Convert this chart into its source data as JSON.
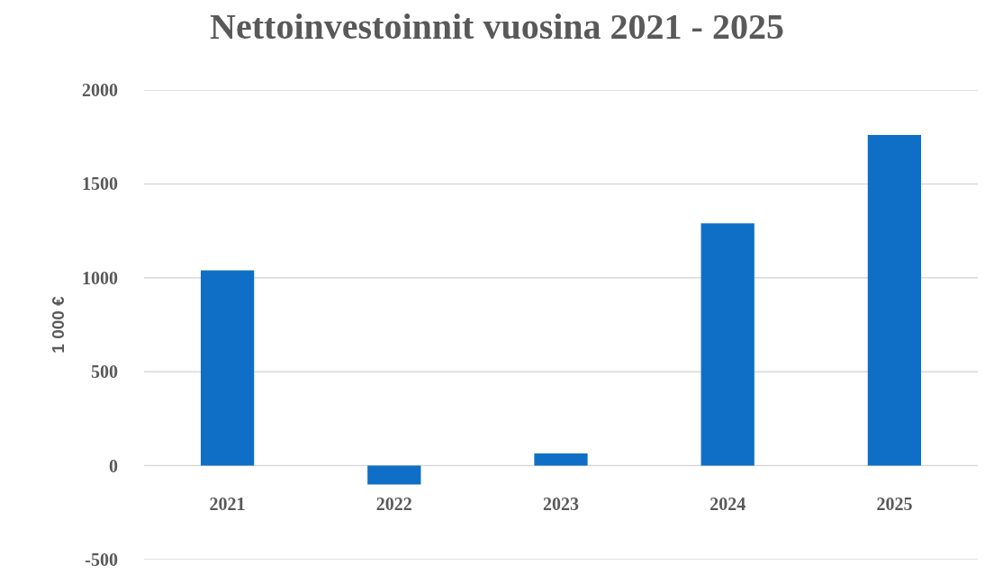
{
  "chart_data": {
    "type": "bar",
    "title": "Nettoinvestoinnit vuosina 2021 - 2025",
    "ylabel": "1 000 €",
    "categories": [
      "2021",
      "2022",
      "2023",
      "2024",
      "2025"
    ],
    "values": [
      1040,
      -100,
      65,
      1290,
      1760
    ],
    "color": "#0f6fc6",
    "ylim": [
      -500,
      2000
    ],
    "yticks": [
      -500,
      0,
      500,
      1000,
      1500,
      2000
    ],
    "grid": "y"
  }
}
